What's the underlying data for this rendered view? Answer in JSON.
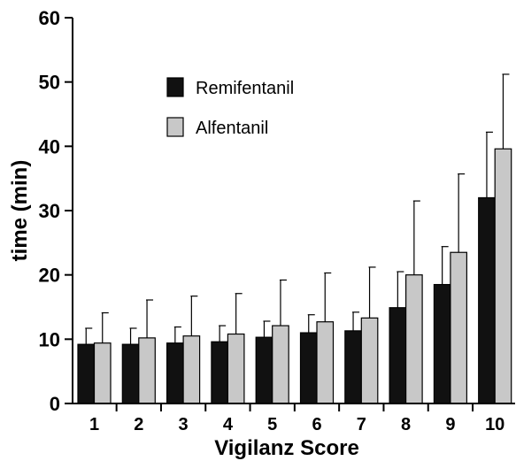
{
  "chart_data": {
    "type": "bar",
    "xlabel": "Vigilanz Score",
    "ylabel": "time (min)",
    "ylim": [
      0,
      60
    ],
    "yticks": [
      "0",
      "10",
      "20",
      "30",
      "40",
      "50",
      "60"
    ],
    "categories": [
      "1",
      "2",
      "3",
      "4",
      "5",
      "6",
      "7",
      "8",
      "9",
      "10"
    ],
    "legend_position": "upper-left",
    "grid": false,
    "series": [
      {
        "name": "Remifentanil",
        "color": "#111111",
        "values": [
          9.2,
          9.2,
          9.4,
          9.6,
          10.3,
          11.0,
          11.3,
          14.9,
          18.5,
          32.0
        ],
        "error_upper": [
          11.7,
          11.7,
          11.9,
          12.1,
          12.8,
          13.8,
          14.2,
          20.5,
          24.4,
          42.2
        ]
      },
      {
        "name": "Alfentanil",
        "color": "#c8c8c8",
        "values": [
          9.4,
          10.2,
          10.5,
          10.8,
          12.1,
          12.7,
          13.3,
          20.0,
          23.5,
          39.6
        ],
        "error_upper": [
          14.1,
          16.1,
          16.7,
          17.1,
          19.2,
          20.3,
          21.2,
          31.5,
          35.7,
          51.2
        ]
      }
    ]
  }
}
